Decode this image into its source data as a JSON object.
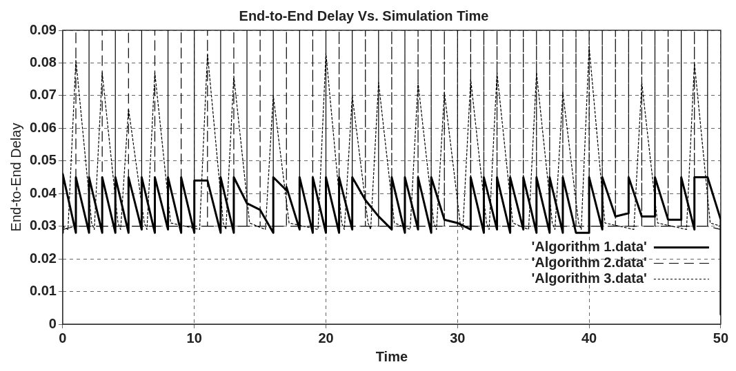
{
  "chart_data": {
    "type": "line",
    "title": "End-to-End Delay Vs. Simulation Time",
    "xlabel": "Time",
    "ylabel": "End-to-End Delay",
    "xlim": [
      0,
      50
    ],
    "xticks": [
      0,
      10,
      20,
      30,
      40,
      50
    ],
    "ylim": [
      0,
      0.09
    ],
    "yticks": [
      0,
      0.01,
      0.02,
      0.03,
      0.04,
      0.05,
      0.06,
      0.07,
      0.08,
      0.09
    ],
    "grid": true,
    "legend": "right",
    "marker": "none",
    "series": [
      {
        "name": "'Algorithm 1.data'",
        "color": "#000000",
        "line_style": "solid",
        "x": [
          0,
          0,
          1,
          1,
          2,
          2,
          3,
          3,
          4,
          4,
          5,
          5,
          6,
          6,
          7,
          7,
          8,
          8,
          9,
          9,
          10,
          10,
          11,
          12,
          12,
          13,
          13,
          14,
          15,
          16,
          16,
          17,
          17,
          18,
          18,
          19,
          19,
          20,
          20,
          21,
          21,
          22,
          22,
          23,
          24,
          25,
          25,
          26,
          26,
          27,
          27,
          28,
          28,
          29,
          30,
          31,
          31,
          32,
          32,
          33,
          33,
          34,
          34,
          35,
          35,
          36,
          36,
          37,
          37,
          38,
          38,
          39,
          40,
          40,
          41,
          41,
          42,
          43,
          43,
          44,
          45,
          45,
          46,
          47,
          47,
          48,
          48,
          49,
          50,
          50
        ],
        "values": [
          0.028,
          0.046,
          0.028,
          0.045,
          0.028,
          0.045,
          0.028,
          0.045,
          0.028,
          0.045,
          0.028,
          0.045,
          0.029,
          0.045,
          0.028,
          0.045,
          0.029,
          0.045,
          0.028,
          0.045,
          0.028,
          0.044,
          0.044,
          0.028,
          0.045,
          0.028,
          0.045,
          0.037,
          0.035,
          0.028,
          0.045,
          0.041,
          0.042,
          0.029,
          0.045,
          0.028,
          0.045,
          0.028,
          0.045,
          0.028,
          0.045,
          0.029,
          0.045,
          0.038,
          0.033,
          0.029,
          0.045,
          0.028,
          0.045,
          0.029,
          0.045,
          0.028,
          0.045,
          0.032,
          0.031,
          0.029,
          0.045,
          0.028,
          0.045,
          0.029,
          0.045,
          0.028,
          0.045,
          0.029,
          0.045,
          0.028,
          0.045,
          0.028,
          0.045,
          0.028,
          0.045,
          0.028,
          0.028,
          0.045,
          0.029,
          0.045,
          0.033,
          0.034,
          0.045,
          0.033,
          0.033,
          0.045,
          0.032,
          0.032,
          0.045,
          0.029,
          0.045,
          0.045,
          0.032,
          0.003
        ]
      },
      {
        "name": "'Algorithm 2.data'",
        "color": "#000000",
        "line_style": "dashed",
        "x": [
          0,
          1,
          1,
          1,
          2,
          2,
          2,
          3,
          3,
          3,
          4,
          4,
          4,
          5,
          5,
          5,
          6,
          6,
          6,
          7,
          7,
          7,
          8,
          8,
          8,
          9,
          9,
          9,
          10,
          10,
          10,
          11,
          11,
          11,
          12,
          12,
          12,
          13,
          13,
          13,
          14,
          14,
          14,
          15,
          15,
          15,
          16,
          16,
          16,
          17,
          17,
          17,
          18,
          18,
          18,
          19,
          19,
          19,
          20,
          20,
          20,
          21,
          21,
          21,
          22,
          22,
          22,
          23,
          23,
          23,
          24,
          24,
          24,
          25,
          25,
          25,
          26,
          26,
          26,
          27,
          27,
          27,
          28,
          28,
          28,
          29,
          29,
          29,
          30,
          30,
          30,
          31,
          31,
          31,
          32,
          32,
          32,
          33,
          33,
          33,
          34,
          34,
          34,
          35,
          35,
          35,
          36,
          36,
          36,
          37,
          37,
          37,
          38,
          38,
          38,
          39,
          39,
          39,
          40,
          40,
          40,
          41,
          41,
          41,
          42,
          42,
          42,
          43,
          43,
          43,
          44,
          44,
          44,
          45,
          45,
          45,
          46,
          46,
          46,
          47,
          47,
          47,
          48,
          48,
          48,
          49,
          49,
          49,
          50
        ],
        "values": [
          0.029,
          0.03,
          0.09,
          0.03,
          0.03,
          0.09,
          0.03,
          0.03,
          0.09,
          0.03,
          0.03,
          0.09,
          0.03,
          0.03,
          0.09,
          0.03,
          0.03,
          0.09,
          0.03,
          0.03,
          0.09,
          0.03,
          0.03,
          0.09,
          0.03,
          0.03,
          0.09,
          0.03,
          0.03,
          0.09,
          0.03,
          0.03,
          0.09,
          0.03,
          0.03,
          0.09,
          0.03,
          0.03,
          0.09,
          0.03,
          0.03,
          0.09,
          0.03,
          0.03,
          0.09,
          0.03,
          0.03,
          0.09,
          0.03,
          0.03,
          0.09,
          0.03,
          0.03,
          0.09,
          0.03,
          0.03,
          0.09,
          0.03,
          0.03,
          0.09,
          0.03,
          0.03,
          0.09,
          0.03,
          0.03,
          0.09,
          0.03,
          0.03,
          0.09,
          0.03,
          0.03,
          0.09,
          0.03,
          0.03,
          0.09,
          0.03,
          0.03,
          0.09,
          0.03,
          0.03,
          0.09,
          0.03,
          0.03,
          0.09,
          0.03,
          0.03,
          0.09,
          0.03,
          0.03,
          0.09,
          0.03,
          0.03,
          0.09,
          0.03,
          0.03,
          0.09,
          0.03,
          0.03,
          0.09,
          0.03,
          0.03,
          0.09,
          0.03,
          0.03,
          0.09,
          0.03,
          0.03,
          0.09,
          0.03,
          0.03,
          0.09,
          0.03,
          0.03,
          0.09,
          0.03,
          0.03,
          0.09,
          0.03,
          0.03,
          0.09,
          0.03,
          0.03,
          0.09,
          0.03,
          0.03,
          0.09,
          0.03,
          0.03,
          0.09,
          0.03,
          0.03,
          0.09,
          0.03,
          0.03,
          0.09,
          0.03,
          0.03,
          0.09,
          0.03,
          0.03,
          0.09,
          0.03,
          0.03,
          0.09,
          0.03,
          0.03,
          0.09,
          0.03,
          0.029
        ]
      },
      {
        "name": "'Algorithm 3.data'",
        "color": "#000000",
        "line_style": "dotted",
        "x": [
          0,
          0.4,
          1,
          2.2,
          2.4,
          3,
          4.2,
          4.4,
          5,
          6.2,
          6.4,
          7,
          8.2,
          10.4,
          11,
          12.2,
          12.4,
          13,
          14.2,
          15.4,
          16,
          17.2,
          19.4,
          20,
          21.2,
          21.4,
          22,
          23.2,
          23.4,
          24,
          25.2,
          26.4,
          27,
          28.2,
          28.4,
          29,
          30.2,
          30.4,
          31,
          32.2,
          32.4,
          33,
          34.2,
          35.4,
          36,
          37.2,
          37.4,
          38,
          39.2,
          39.4,
          40,
          41.2,
          43.4,
          44,
          45.2,
          47.4,
          48,
          49.2,
          50
        ],
        "values": [
          0.03,
          0.029,
          0.081,
          0.031,
          0.029,
          0.077,
          0.031,
          0.029,
          0.066,
          0.031,
          0.029,
          0.077,
          0.031,
          0.029,
          0.083,
          0.031,
          0.029,
          0.076,
          0.031,
          0.029,
          0.07,
          0.031,
          0.029,
          0.083,
          0.031,
          0.029,
          0.07,
          0.031,
          0.029,
          0.074,
          0.031,
          0.029,
          0.074,
          0.031,
          0.029,
          0.071,
          0.031,
          0.029,
          0.075,
          0.031,
          0.029,
          0.077,
          0.031,
          0.029,
          0.077,
          0.031,
          0.029,
          0.071,
          0.031,
          0.029,
          0.085,
          0.031,
          0.029,
          0.074,
          0.031,
          0.029,
          0.08,
          0.031,
          0.03
        ]
      }
    ]
  }
}
